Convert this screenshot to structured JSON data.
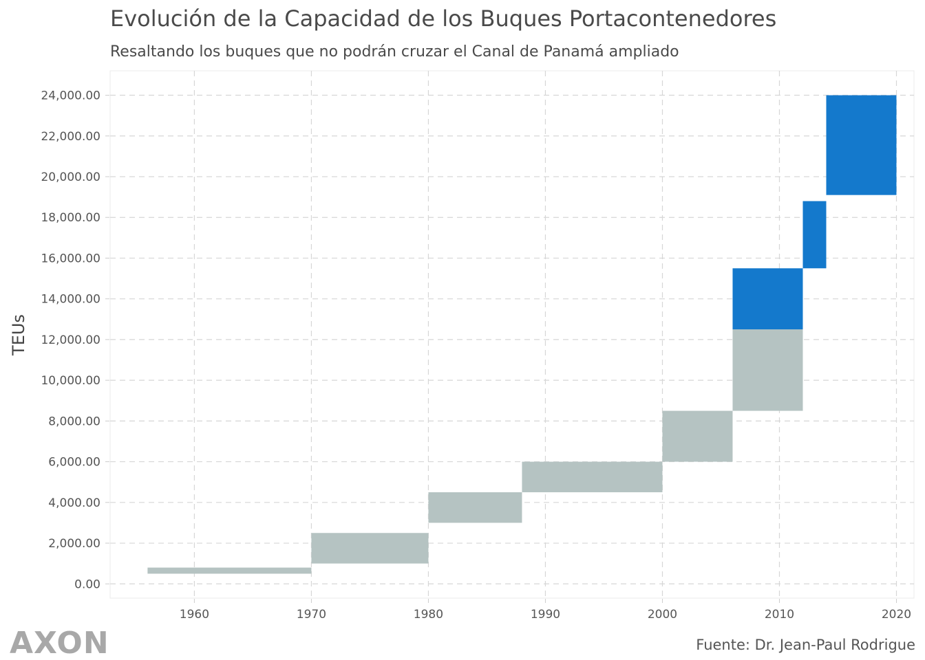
{
  "chart_data": {
    "type": "rect",
    "title": "Evolución de la Capacidad de los Buques Portacontenedores",
    "subtitle": "Resaltando los buques que no podrán cruzar el Canal de Panamá ampliado",
    "xlabel": "",
    "ylabel": "TEUs",
    "xlim": [
      1952.8,
      2021.5
    ],
    "ylim": [
      -700,
      25200
    ],
    "x_ticks": [
      1960,
      1970,
      1980,
      1990,
      2000,
      2010,
      2020
    ],
    "x_tick_labels": [
      "1960",
      "1970",
      "1980",
      "1990",
      "2000",
      "2010",
      "2020"
    ],
    "y_ticks": [
      0,
      2000,
      4000,
      6000,
      8000,
      10000,
      12000,
      14000,
      16000,
      18000,
      20000,
      22000,
      24000
    ],
    "y_tick_labels": [
      "0.00",
      "2,000.00",
      "4,000.00",
      "6,000.00",
      "8,000.00",
      "10,000.00",
      "12,000.00",
      "14,000.00",
      "16,000.00",
      "18,000.00",
      "20,000.00",
      "22,000.00",
      "24,000.00"
    ],
    "grid": true,
    "colors": {
      "normal": "#b5c3c2",
      "highlight": "#1479cc"
    },
    "rects": [
      {
        "x0": 1956,
        "x1": 1970,
        "y0": 500,
        "y1": 800,
        "highlight": false
      },
      {
        "x0": 1970,
        "x1": 1980,
        "y0": 1000,
        "y1": 2500,
        "highlight": false
      },
      {
        "x0": 1980,
        "x1": 1988,
        "y0": 3000,
        "y1": 4500,
        "highlight": false
      },
      {
        "x0": 1988,
        "x1": 2000,
        "y0": 4500,
        "y1": 6000,
        "highlight": false
      },
      {
        "x0": 2000,
        "x1": 2006,
        "y0": 6000,
        "y1": 8500,
        "highlight": false
      },
      {
        "x0": 2006,
        "x1": 2012,
        "y0": 8500,
        "y1": 12500,
        "highlight": false
      },
      {
        "x0": 2006,
        "x1": 2012,
        "y0": 12500,
        "y1": 15500,
        "highlight": true
      },
      {
        "x0": 2012,
        "x1": 2014,
        "y0": 15500,
        "y1": 18800,
        "highlight": true
      },
      {
        "x0": 2014,
        "x1": 2020,
        "y0": 19100,
        "y1": 24000,
        "highlight": true
      }
    ]
  },
  "source": "Fuente: Dr. Jean-Paul Rodrigue",
  "logo": "AXON"
}
